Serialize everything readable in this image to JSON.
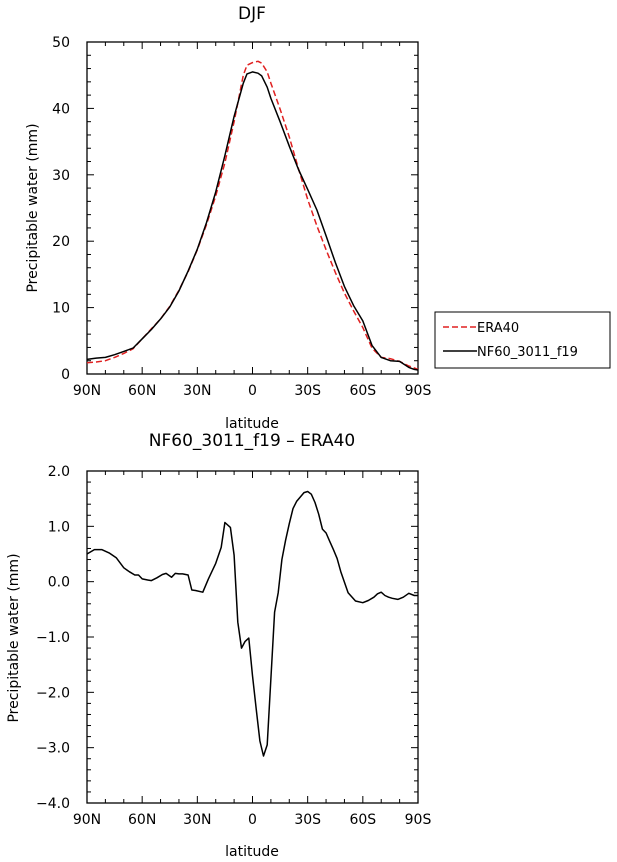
{
  "chart_data": [
    {
      "type": "line",
      "title": "DJF",
      "xlabel": "latitude",
      "ylabel": "Precipitable water (mm)",
      "xlim": [
        -90,
        90
      ],
      "ylim": [
        0,
        50
      ],
      "x_note": "latitude in degrees; negative = N, positive = S",
      "xticks": [
        -90,
        -60,
        -30,
        0,
        30,
        60,
        90
      ],
      "xtick_labels": [
        "90N",
        "60N",
        "30N",
        "0",
        "30S",
        "60S",
        "90S"
      ],
      "yticks": [
        0,
        10,
        20,
        30,
        40,
        50
      ],
      "ytick_labels": [
        "0",
        "10",
        "20",
        "30",
        "40",
        "50"
      ],
      "legend": {
        "position": "right",
        "entries": [
          "ERA40",
          "NF60_3011_f19"
        ]
      },
      "series": [
        {
          "name": "ERA40",
          "color": "#e02020",
          "style": "dashed",
          "x": [
            -90,
            -85,
            -80,
            -75,
            -70,
            -65,
            -60,
            -55,
            -50,
            -45,
            -40,
            -35,
            -30,
            -25,
            -20,
            -15,
            -10,
            -5,
            -3,
            0,
            3,
            5,
            8,
            10,
            15,
            20,
            25,
            30,
            35,
            40,
            45,
            50,
            55,
            60,
            65,
            70,
            75,
            80,
            85,
            88,
            90
          ],
          "y": [
            1.7,
            1.8,
            2.0,
            2.5,
            3.1,
            3.8,
            5.3,
            6.8,
            8.3,
            10.2,
            12.6,
            15.4,
            18.7,
            22.5,
            26.8,
            31.8,
            38.0,
            45.0,
            46.5,
            46.9,
            47.1,
            46.8,
            45.5,
            43.8,
            39.9,
            35.7,
            30.9,
            26.3,
            22.3,
            18.7,
            15.3,
            12.2,
            9.5,
            7.0,
            3.9,
            2.5,
            2.3,
            1.9,
            1.2,
            0.9,
            0.7
          ]
        },
        {
          "name": "NF60_3011_f19",
          "color": "#000000",
          "style": "solid",
          "x": [
            -90,
            -85,
            -80,
            -75,
            -70,
            -65,
            -60,
            -55,
            -50,
            -45,
            -40,
            -35,
            -30,
            -25,
            -20,
            -15,
            -10,
            -5,
            -3,
            0,
            3,
            5,
            8,
            10,
            15,
            20,
            25,
            30,
            35,
            40,
            45,
            50,
            55,
            60,
            65,
            70,
            75,
            80,
            85,
            88,
            90
          ],
          "y": [
            2.2,
            2.4,
            2.5,
            2.9,
            3.4,
            3.9,
            5.3,
            6.7,
            8.3,
            10.1,
            12.5,
            15.5,
            18.8,
            22.8,
            27.4,
            32.9,
            38.8,
            43.8,
            45.2,
            45.5,
            45.3,
            44.9,
            43.2,
            41.5,
            38.0,
            34.3,
            30.8,
            27.8,
            24.7,
            20.8,
            16.8,
            13.2,
            10.3,
            8.0,
            4.3,
            2.5,
            2.0,
            1.9,
            1.0,
            0.7,
            0.6
          ]
        }
      ]
    },
    {
      "type": "line",
      "title": "NF60_3011_f19 – ERA40",
      "xlabel": "latitude",
      "ylabel": "Precipitable water (mm)",
      "xlim": [
        -90,
        90
      ],
      "ylim": [
        -4,
        2
      ],
      "x_note": "latitude in degrees; negative = N, positive = S",
      "xticks": [
        -90,
        -60,
        -30,
        0,
        30,
        60,
        90
      ],
      "xtick_labels": [
        "90N",
        "60N",
        "30N",
        "0",
        "30S",
        "60S",
        "90S"
      ],
      "yticks": [
        -4,
        -3,
        -2,
        -1,
        0,
        1,
        2
      ],
      "ytick_labels": [
        "−4.0",
        "−3.0",
        "−2.0",
        "−1.0",
        "0.0",
        "1.0",
        "2.0"
      ],
      "series": [
        {
          "name": "",
          "color": "#000000",
          "style": "solid",
          "x": [
            -90,
            -86,
            -82,
            -78,
            -74,
            -70,
            -67,
            -64,
            -62,
            -60,
            -57,
            -55,
            -52,
            -49,
            -47,
            -44,
            -42,
            -40,
            -38,
            -35,
            -33,
            -31,
            -27,
            -24,
            -20,
            -17,
            -15,
            -12,
            -10,
            -8,
            -6,
            -4,
            -2,
            0,
            2,
            4,
            6,
            8,
            10,
            12,
            14,
            16,
            18,
            20,
            22,
            24,
            26,
            28,
            30,
            32,
            34,
            36,
            38,
            40,
            42,
            44,
            46,
            48,
            52,
            56,
            60,
            63,
            66,
            68,
            70,
            72,
            74,
            76,
            79,
            82,
            85,
            88,
            90
          ],
          "y": [
            0.5,
            0.58,
            0.58,
            0.52,
            0.43,
            0.25,
            0.18,
            0.12,
            0.12,
            0.05,
            0.03,
            0.02,
            0.07,
            0.13,
            0.15,
            0.08,
            0.15,
            0.14,
            0.14,
            0.12,
            -0.15,
            -0.16,
            -0.19,
            0.05,
            0.33,
            0.62,
            1.07,
            0.98,
            0.48,
            -0.73,
            -1.2,
            -1.08,
            -1.02,
            -1.7,
            -2.3,
            -2.88,
            -3.15,
            -2.95,
            -1.75,
            -0.55,
            -0.2,
            0.4,
            0.75,
            1.05,
            1.32,
            1.45,
            1.53,
            1.61,
            1.63,
            1.58,
            1.43,
            1.22,
            0.95,
            0.88,
            0.73,
            0.58,
            0.42,
            0.18,
            -0.2,
            -0.35,
            -0.38,
            -0.34,
            -0.28,
            -0.22,
            -0.19,
            -0.25,
            -0.28,
            -0.3,
            -0.32,
            -0.28,
            -0.21,
            -0.25,
            -0.25
          ]
        }
      ]
    }
  ]
}
